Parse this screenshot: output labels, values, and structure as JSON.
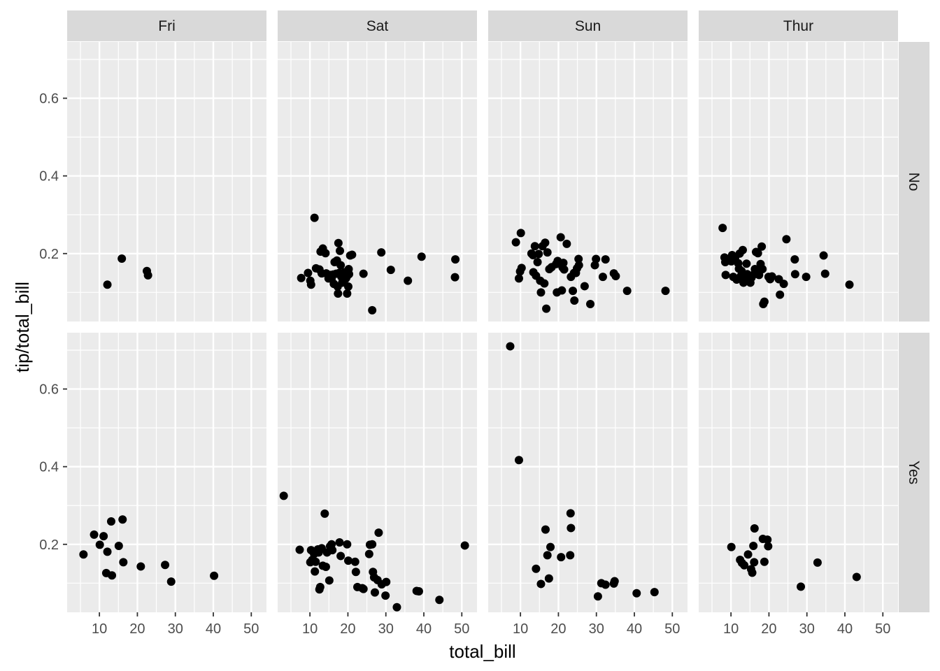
{
  "chart_data": {
    "type": "scatter",
    "xlabel": "total_bill",
    "ylabel": "tip/total_bill",
    "xlim": [
      1.5,
      54
    ],
    "ylim": [
      0.025,
      0.745
    ],
    "x_ticks": [
      10,
      20,
      30,
      40,
      50
    ],
    "y_ticks": [
      0.2,
      0.4,
      0.6
    ],
    "x_tick_labels": [
      "10",
      "20",
      "30",
      "40",
      "50"
    ],
    "y_tick_labels": [
      "0.2",
      "0.4",
      "0.6"
    ],
    "grid": true,
    "facet_cols": [
      "Fri",
      "Sat",
      "Sun",
      "Thur"
    ],
    "facet_rows": [
      "No",
      "Yes"
    ],
    "colors": {
      "panel_bg": "#ebebeb",
      "grid": "#ffffff",
      "strip_bg": "#d9d9d9",
      "point": "#000000"
    },
    "panels": [
      {
        "col": "Fri",
        "row": "No",
        "points": [
          [
            12.1,
            0.12
          ],
          [
            15.9,
            0.187
          ],
          [
            22.5,
            0.155
          ],
          [
            22.8,
            0.144
          ]
        ]
      },
      {
        "col": "Sat",
        "row": "No",
        "points": [
          [
            7.7,
            0.137
          ],
          [
            9.5,
            0.15
          ],
          [
            10.3,
            0.12
          ],
          [
            10.1,
            0.13
          ],
          [
            11.2,
            0.292
          ],
          [
            11.6,
            0.162
          ],
          [
            12.5,
            0.159
          ],
          [
            12.8,
            0.205
          ],
          [
            13.4,
            0.213
          ],
          [
            13.1,
            0.149
          ],
          [
            14.1,
            0.201
          ],
          [
            14.3,
            0.149
          ],
          [
            14.9,
            0.136
          ],
          [
            15.4,
            0.145
          ],
          [
            15.7,
            0.135
          ],
          [
            16.1,
            0.146
          ],
          [
            16.3,
            0.122
          ],
          [
            16.5,
            0.178
          ],
          [
            16.9,
            0.148
          ],
          [
            17.1,
            0.182
          ],
          [
            17.3,
            0.115
          ],
          [
            17.5,
            0.227
          ],
          [
            17.7,
            0.15
          ],
          [
            17.9,
            0.207
          ],
          [
            18.1,
            0.17
          ],
          [
            17.4,
            0.097
          ],
          [
            18.3,
            0.14
          ],
          [
            18.5,
            0.125
          ],
          [
            18.7,
            0.148
          ],
          [
            19.1,
            0.152
          ],
          [
            19.4,
            0.135
          ],
          [
            19.6,
            0.138
          ],
          [
            19.8,
            0.146
          ],
          [
            20.1,
            0.115
          ],
          [
            20.2,
            0.16
          ],
          [
            20.3,
            0.147
          ],
          [
            19.8,
            0.097
          ],
          [
            20.6,
            0.195
          ],
          [
            21.1,
            0.197
          ],
          [
            24.1,
            0.148
          ],
          [
            26.4,
            0.054
          ],
          [
            28.8,
            0.203
          ],
          [
            31.3,
            0.158
          ],
          [
            35.8,
            0.13
          ],
          [
            39.4,
            0.192
          ],
          [
            48.3,
            0.185
          ],
          [
            48.2,
            0.139
          ]
        ]
      },
      {
        "col": "Sun",
        "row": "No",
        "points": [
          [
            8.8,
            0.229
          ],
          [
            9.6,
            0.136
          ],
          [
            9.9,
            0.154
          ],
          [
            10.1,
            0.253
          ],
          [
            10.3,
            0.163
          ],
          [
            12.9,
            0.2
          ],
          [
            13.3,
            0.196
          ],
          [
            13.4,
            0.152
          ],
          [
            13.8,
            0.219
          ],
          [
            14.1,
            0.143
          ],
          [
            14.5,
            0.178
          ],
          [
            14.8,
            0.199
          ],
          [
            15.2,
            0.13
          ],
          [
            15.4,
            0.1
          ],
          [
            15.8,
            0.219
          ],
          [
            16.3,
            0.123
          ],
          [
            16.5,
            0.228
          ],
          [
            16.8,
            0.058
          ],
          [
            17.1,
            0.203
          ],
          [
            17.6,
            0.16
          ],
          [
            18.2,
            0.165
          ],
          [
            19.4,
            0.173
          ],
          [
            19.6,
            0.1
          ],
          [
            19.8,
            0.181
          ],
          [
            20.6,
            0.242
          ],
          [
            20.9,
            0.105
          ],
          [
            21.1,
            0.164
          ],
          [
            21.3,
            0.176
          ],
          [
            21.5,
            0.159
          ],
          [
            22.2,
            0.225
          ],
          [
            23.3,
            0.14
          ],
          [
            23.8,
            0.104
          ],
          [
            24.1,
            0.15
          ],
          [
            24.2,
            0.079
          ],
          [
            24.6,
            0.15
          ],
          [
            24.9,
            0.162
          ],
          [
            25.3,
            0.186
          ],
          [
            25.4,
            0.17
          ],
          [
            26.9,
            0.116
          ],
          [
            28.4,
            0.07
          ],
          [
            29.6,
            0.17
          ],
          [
            29.9,
            0.186
          ],
          [
            31.7,
            0.14
          ],
          [
            32.4,
            0.185
          ],
          [
            34.6,
            0.149
          ],
          [
            35.1,
            0.142
          ],
          [
            38.1,
            0.104
          ],
          [
            48.2,
            0.104
          ]
        ]
      },
      {
        "col": "Thur",
        "row": "No",
        "points": [
          [
            7.8,
            0.266
          ],
          [
            8.3,
            0.19
          ],
          [
            8.5,
            0.178
          ],
          [
            8.6,
            0.145
          ],
          [
            9.4,
            0.186
          ],
          [
            10.1,
            0.18
          ],
          [
            10.3,
            0.196
          ],
          [
            10.6,
            0.14
          ],
          [
            11.1,
            0.19
          ],
          [
            11.5,
            0.133
          ],
          [
            11.9,
            0.175
          ],
          [
            12.1,
            0.161
          ],
          [
            12.3,
            0.2
          ],
          [
            12.6,
            0.142
          ],
          [
            12.8,
            0.155
          ],
          [
            13.1,
            0.209
          ],
          [
            13.3,
            0.125
          ],
          [
            13.6,
            0.138
          ],
          [
            14.1,
            0.174
          ],
          [
            14.3,
            0.147
          ],
          [
            14.6,
            0.131
          ],
          [
            15.1,
            0.125
          ],
          [
            15.4,
            0.138
          ],
          [
            16.1,
            0.147
          ],
          [
            16.3,
            0.16
          ],
          [
            16.6,
            0.204
          ],
          [
            17.1,
            0.201
          ],
          [
            17.4,
            0.145
          ],
          [
            17.8,
            0.173
          ],
          [
            18.1,
            0.218
          ],
          [
            18.3,
            0.16
          ],
          [
            18.5,
            0.07
          ],
          [
            18.8,
            0.076
          ],
          [
            19.9,
            0.14
          ],
          [
            20.3,
            0.134
          ],
          [
            20.8,
            0.141
          ],
          [
            22.6,
            0.134
          ],
          [
            22.9,
            0.094
          ],
          [
            23.9,
            0.122
          ],
          [
            24.6,
            0.237
          ],
          [
            26.8,
            0.185
          ],
          [
            26.9,
            0.147
          ],
          [
            29.8,
            0.14
          ],
          [
            34.4,
            0.195
          ],
          [
            34.8,
            0.148
          ],
          [
            41.2,
            0.12
          ]
        ]
      },
      {
        "col": "Fri",
        "row": "Yes",
        "points": [
          [
            5.8,
            0.174
          ],
          [
            8.6,
            0.225
          ],
          [
            10.1,
            0.199
          ],
          [
            11.1,
            0.221
          ],
          [
            11.8,
            0.126
          ],
          [
            12.1,
            0.181
          ],
          [
            13.1,
            0.259
          ],
          [
            13.3,
            0.12
          ],
          [
            15.1,
            0.196
          ],
          [
            16.1,
            0.264
          ],
          [
            16.3,
            0.154
          ],
          [
            20.9,
            0.143
          ],
          [
            27.3,
            0.147
          ],
          [
            28.9,
            0.104
          ],
          [
            40.2,
            0.119
          ]
        ]
      },
      {
        "col": "Sat",
        "row": "Yes",
        "points": [
          [
            3.1,
            0.325
          ],
          [
            7.3,
            0.186
          ],
          [
            10.1,
            0.154
          ],
          [
            10.3,
            0.185
          ],
          [
            10.6,
            0.16
          ],
          [
            11.1,
            0.175
          ],
          [
            11.3,
            0.13
          ],
          [
            11.5,
            0.155
          ],
          [
            12.1,
            0.187
          ],
          [
            12.3,
            0.179
          ],
          [
            12.5,
            0.084
          ],
          [
            12.7,
            0.09
          ],
          [
            13.1,
            0.19
          ],
          [
            13.4,
            0.145
          ],
          [
            13.9,
            0.279
          ],
          [
            14.2,
            0.142
          ],
          [
            14.5,
            0.179
          ],
          [
            15.1,
            0.107
          ],
          [
            15.3,
            0.195
          ],
          [
            15.7,
            0.2
          ],
          [
            15.9,
            0.185
          ],
          [
            17.8,
            0.205
          ],
          [
            18.1,
            0.17
          ],
          [
            19.8,
            0.2
          ],
          [
            20.1,
            0.158
          ],
          [
            21.9,
            0.155
          ],
          [
            22.1,
            0.129
          ],
          [
            22.5,
            0.09
          ],
          [
            23.8,
            0.087
          ],
          [
            24.1,
            0.085
          ],
          [
            25.6,
            0.175
          ],
          [
            25.8,
            0.199
          ],
          [
            26.4,
            0.2
          ],
          [
            26.6,
            0.129
          ],
          [
            26.9,
            0.115
          ],
          [
            27.1,
            0.076
          ],
          [
            27.8,
            0.108
          ],
          [
            28.1,
            0.23
          ],
          [
            28.9,
            0.097
          ],
          [
            29.9,
            0.068
          ],
          [
            30.1,
            0.103
          ],
          [
            32.9,
            0.038
          ],
          [
            38.1,
            0.08
          ],
          [
            38.7,
            0.079
          ],
          [
            44.1,
            0.057
          ],
          [
            50.8,
            0.197
          ]
        ]
      },
      {
        "col": "Sun",
        "row": "Yes",
        "points": [
          [
            7.3,
            0.71
          ],
          [
            9.6,
            0.417
          ],
          [
            14.1,
            0.137
          ],
          [
            15.4,
            0.098
          ],
          [
            16.6,
            0.238
          ],
          [
            17.1,
            0.172
          ],
          [
            17.5,
            0.112
          ],
          [
            17.9,
            0.193
          ],
          [
            20.7,
            0.167
          ],
          [
            23.1,
            0.172
          ],
          [
            23.2,
            0.28
          ],
          [
            23.3,
            0.242
          ],
          [
            30.4,
            0.066
          ],
          [
            31.3,
            0.1
          ],
          [
            32.4,
            0.096
          ],
          [
            34.6,
            0.099
          ],
          [
            34.8,
            0.105
          ],
          [
            40.6,
            0.074
          ],
          [
            45.3,
            0.077
          ]
        ]
      },
      {
        "col": "Thur",
        "row": "Yes",
        "points": [
          [
            10.1,
            0.193
          ],
          [
            12.4,
            0.16
          ],
          [
            12.9,
            0.152
          ],
          [
            13.5,
            0.146
          ],
          [
            14.5,
            0.174
          ],
          [
            15.3,
            0.136
          ],
          [
            15.6,
            0.127
          ],
          [
            15.9,
            0.196
          ],
          [
            16.1,
            0.154
          ],
          [
            16.2,
            0.241
          ],
          [
            18.4,
            0.214
          ],
          [
            18.8,
            0.155
          ],
          [
            19.6,
            0.212
          ],
          [
            19.8,
            0.195
          ],
          [
            28.4,
            0.091
          ],
          [
            32.8,
            0.153
          ],
          [
            43.1,
            0.116
          ]
        ]
      }
    ]
  }
}
